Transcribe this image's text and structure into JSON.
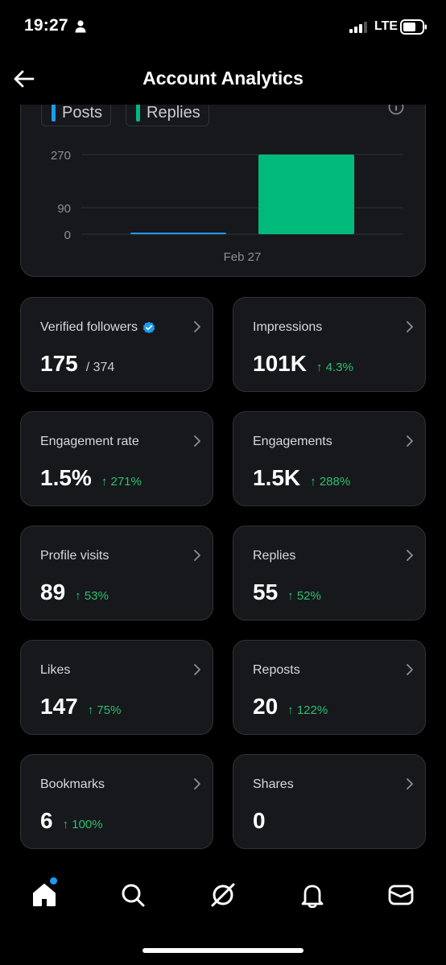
{
  "status_bar": {
    "time": "19:27",
    "network": "LTE"
  },
  "header": {
    "title": "Account Analytics"
  },
  "chart": {
    "legend": [
      {
        "label": "Posts",
        "color": "#1d9bf0"
      },
      {
        "label": "Replies",
        "color": "#00ba7c"
      }
    ]
  },
  "chart_data": {
    "type": "bar",
    "categories": [
      "Feb 27"
    ],
    "series": [
      {
        "name": "Posts",
        "values": [
          1
        ],
        "color": "#1d9bf0"
      },
      {
        "name": "Replies",
        "values": [
          270
        ],
        "color": "#00ba7c"
      }
    ],
    "yticks": [
      "270",
      "90",
      "0"
    ],
    "ytick_values": [
      270,
      90,
      0
    ],
    "ylim": [
      0,
      270
    ],
    "grid": true,
    "legend_position": "top-left"
  },
  "stats": [
    {
      "label": "Verified followers",
      "value": "175",
      "sub": "/ 374",
      "change": "",
      "verified": true
    },
    {
      "label": "Impressions",
      "value": "101K",
      "change": "↑ 4.3%"
    },
    {
      "label": "Engagement rate",
      "value": "1.5%",
      "change": "↑ 271%"
    },
    {
      "label": "Engagements",
      "value": "1.5K",
      "change": "↑ 288%"
    },
    {
      "label": "Profile visits",
      "value": "89",
      "change": "↑ 53%"
    },
    {
      "label": "Replies",
      "value": "55",
      "change": "↑ 52%"
    },
    {
      "label": "Likes",
      "value": "147",
      "change": "↑ 75%"
    },
    {
      "label": "Reposts",
      "value": "20",
      "change": "↑ 122%"
    },
    {
      "label": "Bookmarks",
      "value": "6",
      "change": "↑ 100%"
    },
    {
      "label": "Shares",
      "value": "0",
      "change": ""
    }
  ],
  "bottom_nav": {
    "items": [
      "home-icon",
      "search-icon",
      "grok-icon",
      "notifications-icon",
      "messages-icon"
    ],
    "accent": "#1d9bf0"
  }
}
